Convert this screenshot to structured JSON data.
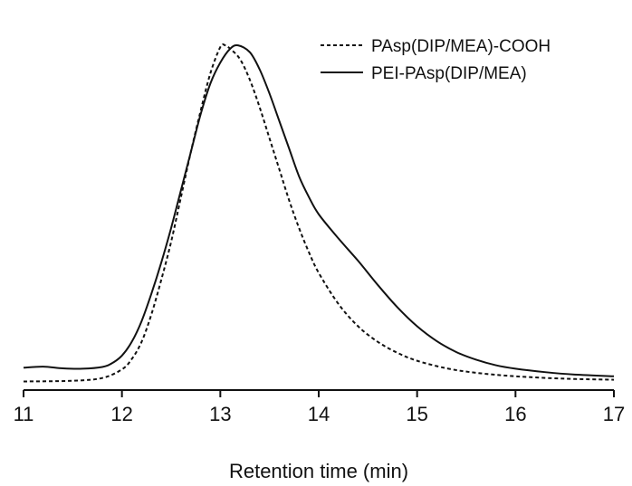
{
  "chart_data": {
    "type": "line",
    "title": "",
    "xlabel": "Retention time (min)",
    "ylabel": "",
    "xlim": [
      11,
      17
    ],
    "ylim": [
      0,
      1.1
    ],
    "grid": false,
    "legend_position": "top-right",
    "x_ticks": [
      "11",
      "12",
      "13",
      "14",
      "15",
      "16",
      "17"
    ],
    "series": [
      {
        "name": "PAsp(DIP/MEA)-COOH",
        "style": "dotted",
        "color": "#111111",
        "points": [
          [
            11.0,
            0.025
          ],
          [
            11.5,
            0.027
          ],
          [
            11.8,
            0.035
          ],
          [
            12.0,
            0.06
          ],
          [
            12.1,
            0.09
          ],
          [
            12.2,
            0.14
          ],
          [
            12.3,
            0.22
          ],
          [
            12.4,
            0.32
          ],
          [
            12.5,
            0.43
          ],
          [
            12.6,
            0.56
          ],
          [
            12.7,
            0.69
          ],
          [
            12.8,
            0.81
          ],
          [
            12.9,
            0.92
          ],
          [
            13.0,
            0.995
          ],
          [
            13.05,
            1.0
          ],
          [
            13.1,
            0.99
          ],
          [
            13.2,
            0.96
          ],
          [
            13.3,
            0.9
          ],
          [
            13.4,
            0.82
          ],
          [
            13.5,
            0.73
          ],
          [
            13.6,
            0.64
          ],
          [
            13.7,
            0.55
          ],
          [
            13.8,
            0.47
          ],
          [
            13.9,
            0.4
          ],
          [
            14.0,
            0.34
          ],
          [
            14.2,
            0.25
          ],
          [
            14.4,
            0.185
          ],
          [
            14.6,
            0.14
          ],
          [
            14.8,
            0.108
          ],
          [
            15.0,
            0.085
          ],
          [
            15.3,
            0.063
          ],
          [
            15.6,
            0.05
          ],
          [
            16.0,
            0.04
          ],
          [
            16.5,
            0.033
          ],
          [
            17.0,
            0.03
          ]
        ]
      },
      {
        "name": "PEI-PAsp(DIP/MEA)",
        "style": "solid",
        "color": "#111111",
        "points": [
          [
            11.0,
            0.065
          ],
          [
            11.2,
            0.068
          ],
          [
            11.4,
            0.063
          ],
          [
            11.6,
            0.062
          ],
          [
            11.8,
            0.067
          ],
          [
            11.9,
            0.078
          ],
          [
            12.0,
            0.1
          ],
          [
            12.1,
            0.14
          ],
          [
            12.2,
            0.2
          ],
          [
            12.3,
            0.28
          ],
          [
            12.4,
            0.37
          ],
          [
            12.5,
            0.47
          ],
          [
            12.6,
            0.58
          ],
          [
            12.7,
            0.69
          ],
          [
            12.8,
            0.8
          ],
          [
            12.9,
            0.89
          ],
          [
            13.0,
            0.95
          ],
          [
            13.1,
            0.99
          ],
          [
            13.18,
            1.0
          ],
          [
            13.3,
            0.98
          ],
          [
            13.4,
            0.93
          ],
          [
            13.5,
            0.86
          ],
          [
            13.6,
            0.78
          ],
          [
            13.7,
            0.7
          ],
          [
            13.8,
            0.62
          ],
          [
            13.9,
            0.56
          ],
          [
            14.0,
            0.51
          ],
          [
            14.2,
            0.44
          ],
          [
            14.4,
            0.375
          ],
          [
            14.6,
            0.305
          ],
          [
            14.8,
            0.24
          ],
          [
            15.0,
            0.185
          ],
          [
            15.2,
            0.142
          ],
          [
            15.4,
            0.11
          ],
          [
            15.6,
            0.088
          ],
          [
            15.8,
            0.072
          ],
          [
            16.0,
            0.062
          ],
          [
            16.3,
            0.052
          ],
          [
            16.6,
            0.045
          ],
          [
            17.0,
            0.04
          ]
        ]
      }
    ]
  }
}
